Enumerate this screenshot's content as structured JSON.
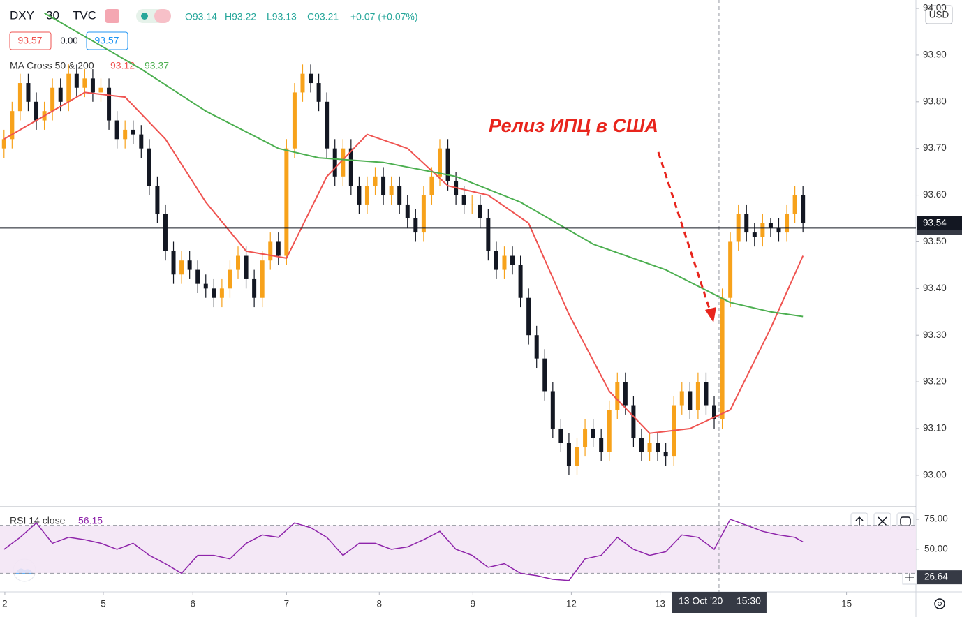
{
  "header": {
    "symbol": "DXY",
    "interval": "30",
    "source": "TVC",
    "ohlc": [
      "O93.14",
      "H93.22",
      "L93.13",
      "C93.21",
      "+0.07 (+0.07%)"
    ],
    "bid": "93.57",
    "spread": "0.00",
    "ask": "93.57",
    "currency": "USD"
  },
  "chart_data": [
    {
      "type": "candlestick",
      "open": [
        93.7,
        93.72,
        93.78,
        93.84,
        93.8,
        93.76,
        93.78,
        93.83,
        93.8,
        93.86,
        93.83,
        93.85,
        93.82,
        93.83,
        93.76,
        93.72,
        93.74,
        93.73,
        93.7,
        93.62,
        93.56,
        93.48,
        93.43,
        93.46,
        93.44,
        93.41,
        93.4,
        93.38,
        93.4,
        93.44,
        93.47,
        93.42,
        93.38,
        93.46,
        93.5,
        93.47,
        93.7,
        93.82,
        93.86,
        93.84,
        93.8,
        93.7,
        93.64,
        93.7,
        93.62,
        93.58,
        93.62,
        93.64,
        93.6,
        93.62,
        93.58,
        93.55,
        93.52,
        93.6,
        93.64,
        93.7,
        93.63,
        93.6,
        93.58,
        93.58,
        93.55,
        93.48,
        93.44,
        93.47,
        93.45,
        93.38,
        93.3,
        93.25,
        93.18,
        93.1,
        93.07,
        93.02,
        93.06,
        93.1,
        93.08,
        93.05,
        93.14,
        93.2,
        93.15,
        93.08,
        93.05,
        93.07,
        93.05,
        93.04,
        93.15,
        93.18,
        93.14,
        93.2,
        93.15,
        93.12,
        93.38,
        93.5,
        93.56,
        93.52,
        93.51,
        93.54,
        93.53,
        93.52,
        93.56,
        93.6
      ],
      "high": [
        93.74,
        93.8,
        93.86,
        93.86,
        93.82,
        93.8,
        93.85,
        93.85,
        93.88,
        93.88,
        93.87,
        93.87,
        93.85,
        93.85,
        93.78,
        93.76,
        93.76,
        93.75,
        93.72,
        93.64,
        93.58,
        93.5,
        93.48,
        93.48,
        93.46,
        93.43,
        93.42,
        93.42,
        93.46,
        93.49,
        93.49,
        93.44,
        93.48,
        93.52,
        93.52,
        93.72,
        93.84,
        93.88,
        93.88,
        93.86,
        93.82,
        93.72,
        93.72,
        93.72,
        93.64,
        93.64,
        93.66,
        93.66,
        93.64,
        93.64,
        93.6,
        93.57,
        93.62,
        93.66,
        93.72,
        93.72,
        93.65,
        93.62,
        93.6,
        93.6,
        93.57,
        93.5,
        93.49,
        93.49,
        93.47,
        93.4,
        93.32,
        93.27,
        93.2,
        93.12,
        93.09,
        93.08,
        93.12,
        93.12,
        93.1,
        93.16,
        93.22,
        93.22,
        93.17,
        93.1,
        93.09,
        93.09,
        93.07,
        93.17,
        93.2,
        93.2,
        93.22,
        93.22,
        93.17,
        93.4,
        93.52,
        93.58,
        93.58,
        93.54,
        93.56,
        93.55,
        93.55,
        93.58,
        93.62,
        93.62
      ],
      "low": [
        93.68,
        93.7,
        93.76,
        93.78,
        93.74,
        93.74,
        93.76,
        93.78,
        93.78,
        93.81,
        93.81,
        93.8,
        93.8,
        93.74,
        93.7,
        93.7,
        93.71,
        93.68,
        93.6,
        93.54,
        93.46,
        93.41,
        93.41,
        93.42,
        93.39,
        93.38,
        93.36,
        93.36,
        93.38,
        93.42,
        93.4,
        93.36,
        93.36,
        93.44,
        93.45,
        93.45,
        93.68,
        93.8,
        93.82,
        93.78,
        93.68,
        93.62,
        93.62,
        93.6,
        93.56,
        93.56,
        93.6,
        93.58,
        93.58,
        93.56,
        93.53,
        93.5,
        93.5,
        93.58,
        93.62,
        93.61,
        93.58,
        93.56,
        93.56,
        93.53,
        93.46,
        93.42,
        93.42,
        93.43,
        93.36,
        93.28,
        93.23,
        93.16,
        93.08,
        93.05,
        93.0,
        93.0,
        93.04,
        93.06,
        93.03,
        93.03,
        93.12,
        93.13,
        93.06,
        93.03,
        93.03,
        93.03,
        93.02,
        93.02,
        93.13,
        93.12,
        93.12,
        93.13,
        93.1,
        93.1,
        93.36,
        93.48,
        93.5,
        93.49,
        93.49,
        93.51,
        93.5,
        93.5,
        93.54,
        93.52
      ],
      "close": [
        93.72,
        93.78,
        93.84,
        93.8,
        93.76,
        93.78,
        93.83,
        93.8,
        93.86,
        93.83,
        93.85,
        93.82,
        93.83,
        93.76,
        93.72,
        93.74,
        93.73,
        93.7,
        93.62,
        93.56,
        93.48,
        93.43,
        93.46,
        93.44,
        93.41,
        93.4,
        93.38,
        93.4,
        93.44,
        93.47,
        93.42,
        93.38,
        93.46,
        93.5,
        93.47,
        93.7,
        93.82,
        93.86,
        93.84,
        93.8,
        93.7,
        93.64,
        93.7,
        93.62,
        93.58,
        93.62,
        93.64,
        93.6,
        93.62,
        93.58,
        93.55,
        93.52,
        93.6,
        93.64,
        93.7,
        93.63,
        93.6,
        93.58,
        93.58,
        93.55,
        93.48,
        93.44,
        93.47,
        93.45,
        93.38,
        93.3,
        93.25,
        93.18,
        93.1,
        93.07,
        93.02,
        93.06,
        93.1,
        93.08,
        93.05,
        93.14,
        93.2,
        93.15,
        93.08,
        93.05,
        93.07,
        93.05,
        93.04,
        93.15,
        93.18,
        93.14,
        93.2,
        93.15,
        93.12,
        93.38,
        93.5,
        93.56,
        93.52,
        93.51,
        93.54,
        93.53,
        93.52,
        93.56,
        93.6,
        93.54
      ],
      "up_color": "#f7a21b",
      "down_color": "#131722",
      "xlim": [
        -0.5,
        113
      ],
      "ylim": [
        92.934,
        94.018
      ],
      "yticks": [
        {
          "value": 93.0,
          "label": "93.00"
        },
        {
          "value": 93.1,
          "label": "93.10"
        },
        {
          "value": 93.2,
          "label": "93.20"
        },
        {
          "value": 93.3,
          "label": "93.30"
        },
        {
          "value": 93.4,
          "label": "93.40"
        },
        {
          "value": 93.5,
          "label": "93.50"
        },
        {
          "value": 93.6,
          "label": "93.60"
        },
        {
          "value": 93.7,
          "label": "93.70"
        },
        {
          "value": 93.8,
          "label": "93.80"
        },
        {
          "value": 93.9,
          "label": "93.90"
        },
        {
          "value": 94.0,
          "label": "94.00"
        }
      ],
      "xticks": [
        {
          "value": 0.1,
          "label": "2"
        },
        {
          "value": 12.3,
          "label": "5"
        },
        {
          "value": 23.4,
          "label": "6"
        },
        {
          "value": 35.0,
          "label": "7"
        },
        {
          "value": 46.5,
          "label": "8"
        },
        {
          "value": 58.1,
          "label": "9"
        },
        {
          "value": 70.3,
          "label": "12"
        },
        {
          "value": 81.3,
          "label": "13"
        },
        {
          "value": 104.4,
          "label": "15"
        }
      ],
      "indicator": "MA Cross 50 & 200",
      "indicator_values": [
        93.12,
        93.37
      ],
      "lines": [
        {
          "color": "#ef5350",
          "x": [
            0,
            5,
            10,
            15,
            20,
            25,
            30,
            35,
            40,
            45,
            50,
            55,
            60,
            65,
            70,
            75,
            80,
            85,
            90,
            95,
            99
          ],
          "values": [
            93.72,
            93.77,
            93.82,
            93.81,
            93.72,
            93.585,
            93.48,
            93.465,
            93.64,
            93.73,
            93.7,
            93.62,
            93.6,
            93.54,
            93.345,
            93.18,
            93.09,
            93.1,
            93.14,
            93.315,
            93.47
          ]
        },
        {
          "color": "#4caf50",
          "x": [
            5,
            17,
            25,
            34,
            39,
            47,
            56,
            64,
            73,
            82,
            86,
            90,
            95,
            99
          ],
          "values": [
            93.99,
            93.87,
            93.78,
            93.7,
            93.68,
            93.67,
            93.64,
            93.585,
            93.495,
            93.44,
            93.405,
            93.37,
            93.35,
            93.34
          ]
        }
      ],
      "hline": 93.53,
      "last_price": 93.54,
      "crosshair": {
        "x": 88.6,
        "date": "13 Oct '20",
        "time": "15:30"
      },
      "annotation": "Релиз ИПЦ в США"
    },
    {
      "type": "line",
      "title": "RSI 14 close",
      "last_value": 56.15,
      "color": "#8e24aa",
      "band": [
        30,
        70
      ],
      "marker": 26.64,
      "x": [
        0,
        2,
        4,
        6,
        8,
        10,
        12,
        14,
        16,
        18,
        20,
        22,
        24,
        26,
        28,
        30,
        32,
        34,
        36,
        38,
        40,
        42,
        44,
        46,
        48,
        50,
        52,
        54,
        56,
        58,
        60,
        62,
        64,
        66,
        68,
        70,
        72,
        74,
        76,
        78,
        80,
        82,
        84,
        86,
        88,
        90,
        92,
        94,
        96,
        98,
        99
      ],
      "values": [
        50,
        60,
        72,
        55,
        60,
        58,
        55,
        50,
        55,
        45,
        38,
        30,
        45,
        45,
        42,
        55,
        62,
        60,
        72,
        68,
        60,
        45,
        55,
        55,
        50,
        52,
        58,
        65,
        50,
        45,
        35,
        38,
        30,
        28,
        25,
        24,
        42,
        45,
        60,
        50,
        45,
        48,
        62,
        60,
        50,
        75,
        70,
        65,
        62,
        60,
        56.15
      ],
      "ylim": [
        14.5,
        84.9
      ],
      "yticks": [
        {
          "value": 75,
          "label": "75.00"
        },
        {
          "value": 50,
          "label": "50.00"
        }
      ]
    }
  ]
}
